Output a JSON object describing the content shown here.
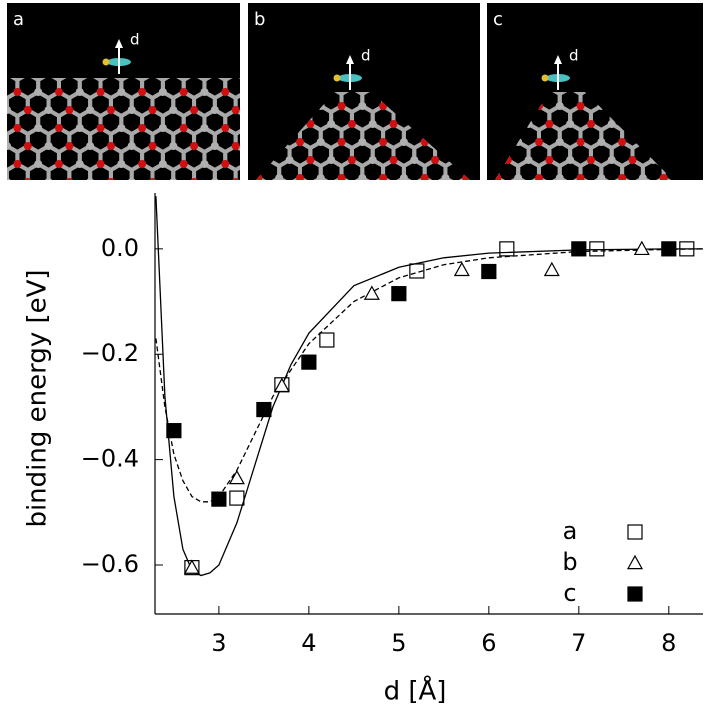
{
  "panels": [
    {
      "label": "a",
      "arrow_label": "d"
    },
    {
      "label": "b",
      "arrow_label": "d"
    },
    {
      "label": "c",
      "arrow_label": "d"
    }
  ],
  "chart_data": {
    "type": "scatter",
    "xlabel": "d [Å]",
    "ylabel": "binding energy [eV]",
    "xlim": [
      2.29,
      8.38
    ],
    "ylim": [
      -0.693,
      0.106
    ],
    "xticks": [
      3,
      4,
      5,
      6,
      7,
      8
    ],
    "yticks": [
      {
        "value": 0,
        "label": "0.0"
      },
      {
        "value": -0.2,
        "label": "−0.2"
      },
      {
        "value": -0.4,
        "label": "−0.4"
      },
      {
        "value": -0.6,
        "label": "−0.6"
      }
    ],
    "legend": "lower right",
    "series": [
      {
        "name": "a",
        "marker": "open-square",
        "color": "#000000",
        "x": [
          2.7,
          3.2,
          3.7,
          4.2,
          5.2,
          6.2,
          7.2,
          8.2
        ],
        "values": [
          -0.605,
          -0.473,
          -0.258,
          -0.173,
          -0.042,
          0.0,
          0.0,
          0.0
        ]
      },
      {
        "name": "b",
        "marker": "open-triangle",
        "color": "#000000",
        "x": [
          2.7,
          3.2,
          3.7,
          4.7,
          5.7,
          6.7,
          7.7
        ],
        "values": [
          -0.605,
          -0.435,
          -0.26,
          -0.085,
          -0.04,
          -0.04,
          0.0
        ]
      },
      {
        "name": "c",
        "marker": "filled-square",
        "color": "#000000",
        "x": [
          2.5,
          3.0,
          3.5,
          4.0,
          5.0,
          6.0,
          7.0,
          8.0
        ],
        "values": [
          -0.345,
          -0.475,
          -0.305,
          -0.215,
          -0.085,
          -0.043,
          0.0,
          0.0
        ]
      }
    ],
    "curves": [
      {
        "style": "solid",
        "color": "#000000",
        "x": [
          2.3,
          2.4,
          2.5,
          2.6,
          2.7,
          2.8,
          2.9,
          3.0,
          3.2,
          3.4,
          3.6,
          3.8,
          4.0,
          4.5,
          5.0,
          5.5,
          6.0,
          7.0,
          8.0,
          8.38
        ],
        "values": [
          0.1,
          -0.28,
          -0.47,
          -0.57,
          -0.61,
          -0.62,
          -0.615,
          -0.6,
          -0.52,
          -0.41,
          -0.3,
          -0.22,
          -0.16,
          -0.07,
          -0.035,
          -0.017,
          -0.008,
          -0.002,
          0.0,
          0.0
        ]
      },
      {
        "style": "dashed",
        "color": "#000000",
        "x": [
          2.3,
          2.4,
          2.5,
          2.6,
          2.7,
          2.8,
          2.9,
          3.0,
          3.2,
          3.4,
          3.6,
          3.8,
          4.0,
          4.5,
          5.0,
          5.5,
          6.0,
          7.0,
          8.0,
          8.38
        ],
        "values": [
          -0.17,
          -0.3,
          -0.39,
          -0.44,
          -0.47,
          -0.48,
          -0.48,
          -0.47,
          -0.42,
          -0.35,
          -0.28,
          -0.23,
          -0.18,
          -0.1,
          -0.055,
          -0.03,
          -0.017,
          -0.005,
          -0.001,
          0.0
        ]
      }
    ]
  }
}
